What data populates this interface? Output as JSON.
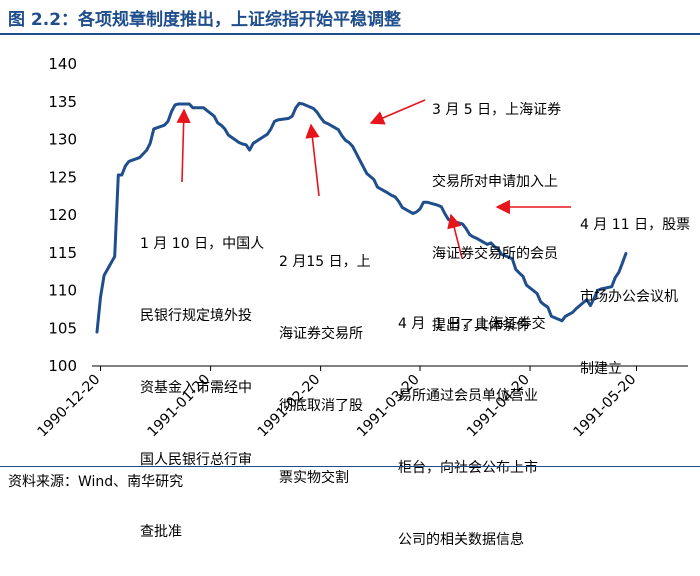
{
  "header": {
    "title": "图 2.2：各项规章制度推出，上证综指开始平稳调整"
  },
  "footer": {
    "source": "资料来源：Wind、南华研究"
  },
  "colors": {
    "line": "#1f4e8c",
    "arrow": "#e8141c",
    "title": "#1f4e8c"
  },
  "chart_data": {
    "type": "line",
    "title": "",
    "xlabel": "",
    "ylabel": "",
    "ylim": [
      100,
      140
    ],
    "yticks": [
      "100",
      "105",
      "110",
      "115",
      "120",
      "125",
      "130",
      "135",
      "140"
    ],
    "xticks": [
      "1990-12-20",
      "1991-01-20",
      "1991-02-20",
      "1991-03-20",
      "1991-04-20",
      "1991-05-20"
    ],
    "xrange": [
      "1990-12-19",
      "1991-05-30"
    ],
    "grid": false,
    "legend": "none",
    "series": [
      {
        "name": "",
        "points": [
          [
            "1990-12-19",
            104.5
          ],
          [
            "1990-12-20",
            109.1
          ],
          [
            "1990-12-21",
            112.0
          ],
          [
            "1990-12-24",
            114.5
          ],
          [
            "1990-12-25",
            125.3
          ],
          [
            "1990-12-26",
            125.3
          ],
          [
            "1990-12-27",
            126.5
          ],
          [
            "1990-12-28",
            127.1
          ],
          [
            "1990-12-31",
            127.6
          ],
          [
            "1991-01-02",
            128.6
          ],
          [
            "1991-01-03",
            129.5
          ],
          [
            "1991-01-04",
            131.4
          ],
          [
            "1991-01-07",
            131.9
          ],
          [
            "1991-01-08",
            132.4
          ],
          [
            "1991-01-09",
            133.7
          ],
          [
            "1991-01-10",
            134.6
          ],
          [
            "1991-01-11",
            134.7
          ],
          [
            "1991-01-14",
            134.7
          ],
          [
            "1991-01-15",
            134.2
          ],
          [
            "1991-01-16",
            134.2
          ],
          [
            "1991-01-17",
            134.2
          ],
          [
            "1991-01-18",
            134.2
          ],
          [
            "1991-01-21",
            133.1
          ],
          [
            "1991-01-22",
            132.2
          ],
          [
            "1991-01-23",
            131.9
          ],
          [
            "1991-01-24",
            131.4
          ],
          [
            "1991-01-25",
            130.6
          ],
          [
            "1991-01-28",
            129.6
          ],
          [
            "1991-01-29",
            129.4
          ],
          [
            "1991-01-30",
            129.3
          ],
          [
            "1991-01-31",
            128.6
          ],
          [
            "1991-02-01",
            129.5
          ],
          [
            "1991-02-04",
            130.4
          ],
          [
            "1991-02-05",
            130.7
          ],
          [
            "1991-02-06",
            131.4
          ],
          [
            "1991-02-07",
            132.4
          ],
          [
            "1991-02-08",
            132.6
          ],
          [
            "1991-02-11",
            132.8
          ],
          [
            "1991-02-12",
            133.1
          ],
          [
            "1991-02-13",
            134.2
          ],
          [
            "1991-02-14",
            134.8
          ],
          [
            "1991-02-15",
            134.7
          ],
          [
            "1991-02-18",
            134.1
          ],
          [
            "1991-02-19",
            133.6
          ],
          [
            "1991-02-20",
            132.9
          ],
          [
            "1991-02-21",
            132.3
          ],
          [
            "1991-02-22",
            132.1
          ],
          [
            "1991-02-25",
            131.3
          ],
          [
            "1991-02-26",
            130.5
          ],
          [
            "1991-02-27",
            129.9
          ],
          [
            "1991-02-28",
            129.6
          ],
          [
            "1991-03-01",
            129.1
          ],
          [
            "1991-03-04",
            126.4
          ],
          [
            "1991-03-05",
            125.5
          ],
          [
            "1991-03-06",
            125.1
          ],
          [
            "1991-03-07",
            124.7
          ],
          [
            "1991-03-08",
            123.7
          ],
          [
            "1991-03-11",
            122.9
          ],
          [
            "1991-03-12",
            122.6
          ],
          [
            "1991-03-13",
            122.4
          ],
          [
            "1991-03-14",
            121.8
          ],
          [
            "1991-03-15",
            121.0
          ],
          [
            "1991-03-18",
            120.2
          ],
          [
            "1991-03-19",
            120.4
          ],
          [
            "1991-03-20",
            120.8
          ],
          [
            "1991-03-21",
            121.7
          ],
          [
            "1991-03-22",
            121.7
          ],
          [
            "1991-03-25",
            121.3
          ],
          [
            "1991-03-26",
            121.1
          ],
          [
            "1991-03-27",
            120.2
          ],
          [
            "1991-03-28",
            119.4
          ],
          [
            "1991-03-29",
            119.2
          ],
          [
            "1991-04-01",
            118.8
          ],
          [
            "1991-04-02",
            118.2
          ],
          [
            "1991-04-03",
            117.4
          ],
          [
            "1991-04-04",
            117.1
          ],
          [
            "1991-04-05",
            116.9
          ],
          [
            "1991-04-08",
            116.1
          ],
          [
            "1991-04-09",
            116.3
          ],
          [
            "1991-04-10",
            115.8
          ],
          [
            "1991-04-11",
            115.5
          ],
          [
            "1991-04-12",
            114.8
          ],
          [
            "1991-04-15",
            114.2
          ],
          [
            "1991-04-16",
            112.8
          ],
          [
            "1991-04-17",
            112.3
          ],
          [
            "1991-04-18",
            111.9
          ],
          [
            "1991-04-19",
            110.7
          ],
          [
            "1991-04-22",
            109.6
          ],
          [
            "1991-04-23",
            108.5
          ],
          [
            "1991-04-24",
            108.1
          ],
          [
            "1991-04-25",
            107.8
          ],
          [
            "1991-04-26",
            106.6
          ],
          [
            "1991-04-29",
            106.0
          ],
          [
            "1991-04-30",
            106.6
          ],
          [
            "1991-05-02",
            107.1
          ],
          [
            "1991-05-03",
            107.6
          ],
          [
            "1991-05-06",
            108.8
          ],
          [
            "1991-05-07",
            108.0
          ],
          [
            "1991-05-08",
            108.9
          ],
          [
            "1991-05-09",
            110.0
          ],
          [
            "1991-05-10",
            110.2
          ],
          [
            "1991-05-13",
            110.5
          ],
          [
            "1991-05-14",
            111.7
          ],
          [
            "1991-05-15",
            112.4
          ],
          [
            "1991-05-16",
            113.6
          ],
          [
            "1991-05-17",
            114.9
          ]
        ]
      }
    ],
    "annotations": [
      {
        "lines": [
          "1 月 10 日，中国人",
          "民银行规定境外投",
          "资基金入市需经中",
          "国人民银行总行审",
          "查批准"
        ]
      },
      {
        "lines": [
          "2 月15 日，上",
          "海证券交易所",
          "彻底取消了股",
          "票实物交割"
        ]
      },
      {
        "lines": [
          "3 月 5 日，上海证券",
          "交易所对申请加入上",
          "海证券交易所的会员",
          "提出了具体条件"
        ]
      },
      {
        "lines": [
          "4 月  1 日，上海证券交",
          "易所通过会员单位营业",
          "柜台，向社会公布上市",
          "公司的相关数据信息"
        ]
      },
      {
        "lines": [
          "4 月 11 日，股票",
          "市场办公会议机",
          "制建立"
        ]
      }
    ]
  }
}
